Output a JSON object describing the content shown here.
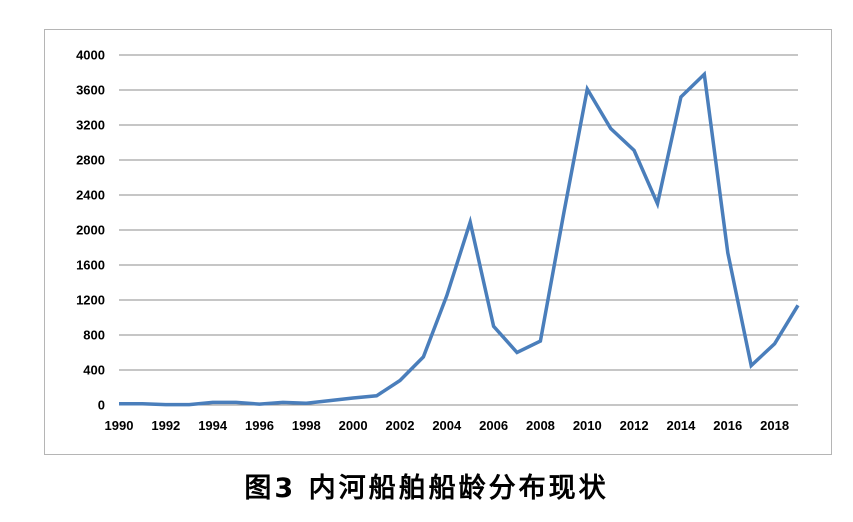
{
  "caption": "图3  内河船舶船龄分布现状",
  "chart_data": {
    "type": "line",
    "title": "",
    "xlabel": "",
    "ylabel": "",
    "x": [
      1990,
      1991,
      1992,
      1993,
      1994,
      1995,
      1996,
      1997,
      1998,
      1999,
      2000,
      2001,
      2002,
      2003,
      2004,
      2005,
      2006,
      2007,
      2008,
      2009,
      2010,
      2011,
      2012,
      2013,
      2014,
      2015,
      2016,
      2017,
      2018,
      2019
    ],
    "series": [
      {
        "color": "#4a7ebb",
        "values": [
          15,
          15,
          5,
          5,
          30,
          30,
          10,
          30,
          20,
          50,
          80,
          105,
          280,
          550,
          1250,
          2090,
          900,
          600,
          730,
          2200,
          3610,
          3160,
          2910,
          2300,
          3520,
          3780,
          1740,
          450,
          700,
          1140
        ]
      }
    ],
    "xlim": [
      1990,
      2019
    ],
    "ylim": [
      0,
      4000
    ],
    "yticks": [
      "0",
      "400",
      "800",
      "1200",
      "1600",
      "2000",
      "2400",
      "2800",
      "3200",
      "3600",
      "4000"
    ],
    "xticks": [
      "1990",
      "1992",
      "1994",
      "1996",
      "1998",
      "2000",
      "2002",
      "2004",
      "2006",
      "2008",
      "2010",
      "2012",
      "2014",
      "2016",
      "2018"
    ],
    "grid": true,
    "gridline_color": "#8c8c8c"
  }
}
